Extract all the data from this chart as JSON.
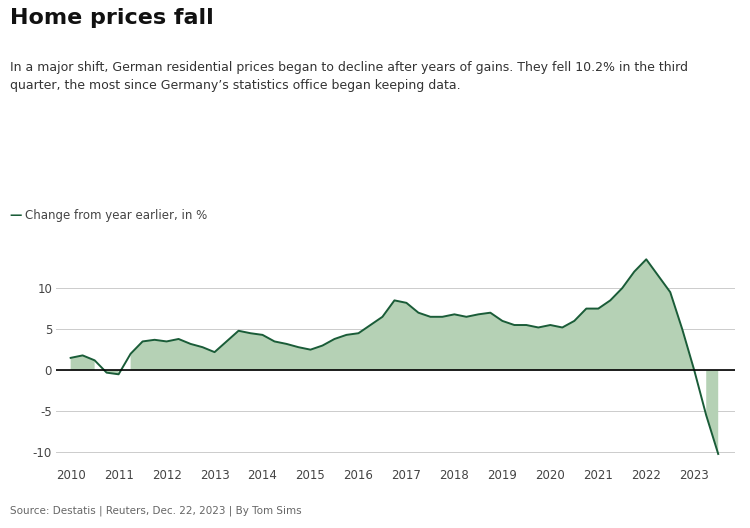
{
  "title": "Home prices fall",
  "subtitle": "In a major shift, German residential prices began to decline after years of gains. They fell 10.2% in the third\nquarter, the most since Germany’s statistics office began keeping data.",
  "legend_label": "Change from year earlier, in %",
  "source": "Source: Destatis | Reuters, Dec. 22, 2023 | By Tom Sims",
  "line_color": "#1a5c38",
  "fill_color": "#b5d1b5",
  "background_color": "#ffffff",
  "ylim": [
    -11.5,
    15.5
  ],
  "yticks": [
    -10,
    -5,
    0,
    5,
    10
  ],
  "dates": [
    2010.0,
    2010.25,
    2010.5,
    2010.75,
    2011.0,
    2011.25,
    2011.5,
    2011.75,
    2012.0,
    2012.25,
    2012.5,
    2012.75,
    2013.0,
    2013.25,
    2013.5,
    2013.75,
    2014.0,
    2014.25,
    2014.5,
    2014.75,
    2015.0,
    2015.25,
    2015.5,
    2015.75,
    2016.0,
    2016.25,
    2016.5,
    2016.75,
    2017.0,
    2017.25,
    2017.5,
    2017.75,
    2018.0,
    2018.25,
    2018.5,
    2018.75,
    2019.0,
    2019.25,
    2019.5,
    2019.75,
    2020.0,
    2020.25,
    2020.5,
    2020.75,
    2021.0,
    2021.25,
    2021.5,
    2021.75,
    2022.0,
    2022.25,
    2022.5,
    2022.75,
    2023.0,
    2023.25,
    2023.5
  ],
  "values": [
    1.5,
    1.8,
    1.2,
    -0.3,
    -0.5,
    2.0,
    3.5,
    3.7,
    3.5,
    3.8,
    3.2,
    2.8,
    2.2,
    3.5,
    4.8,
    4.5,
    4.3,
    3.5,
    3.2,
    2.8,
    2.5,
    3.0,
    3.8,
    4.3,
    4.5,
    5.5,
    6.5,
    8.5,
    8.2,
    7.0,
    6.5,
    6.5,
    6.8,
    6.5,
    6.8,
    7.0,
    6.0,
    5.5,
    5.5,
    5.2,
    5.5,
    5.2,
    6.0,
    7.5,
    7.5,
    8.5,
    10.0,
    12.0,
    13.5,
    11.5,
    9.5,
    5.0,
    0.0,
    -5.5,
    -10.2
  ],
  "xtick_years": [
    2010,
    2011,
    2012,
    2013,
    2014,
    2015,
    2016,
    2017,
    2018,
    2019,
    2020,
    2021,
    2022,
    2023
  ],
  "xlim": [
    2009.7,
    2023.85
  ]
}
